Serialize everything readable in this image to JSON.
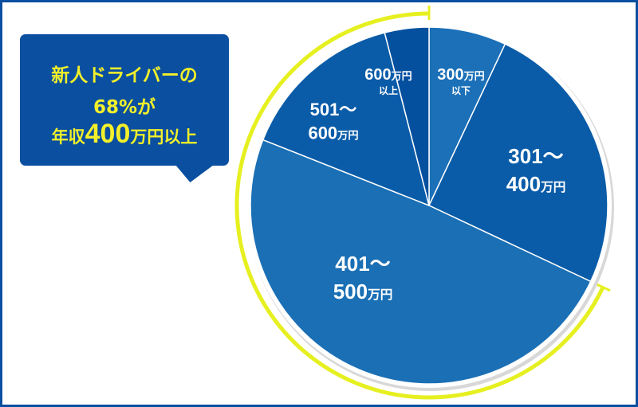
{
  "callout": {
    "line1": "新人ドライバーの",
    "line2": "68%が",
    "line3_pre": "年収",
    "line3_num": "400",
    "line3_post": "万円以上"
  },
  "chart_data": {
    "type": "pie",
    "unit": "万円",
    "slices": [
      {
        "label_num": "300",
        "label_unit": "万円",
        "label_sub": "以下",
        "value": 7,
        "color": "#1b70b8"
      },
      {
        "label_num": "301～",
        "label_num2": "400",
        "label_unit": "万円",
        "value": 25,
        "color": "#0a5ca8"
      },
      {
        "label_num": "401～",
        "label_num2": "500",
        "label_unit": "万円",
        "value": 49,
        "color": "#1a6fb5"
      },
      {
        "label_num": "501～",
        "label_num2": "600",
        "label_unit": "万円",
        "value": 15,
        "color": "#0a5ca8"
      },
      {
        "label_num": "600",
        "label_unit": "万円",
        "label_sub": "以上",
        "value": 4,
        "color": "#04509f"
      }
    ],
    "highlight": {
      "from_slice": 2,
      "to_slice": 4,
      "total_percent": 68,
      "color": "#e6f020"
    }
  }
}
